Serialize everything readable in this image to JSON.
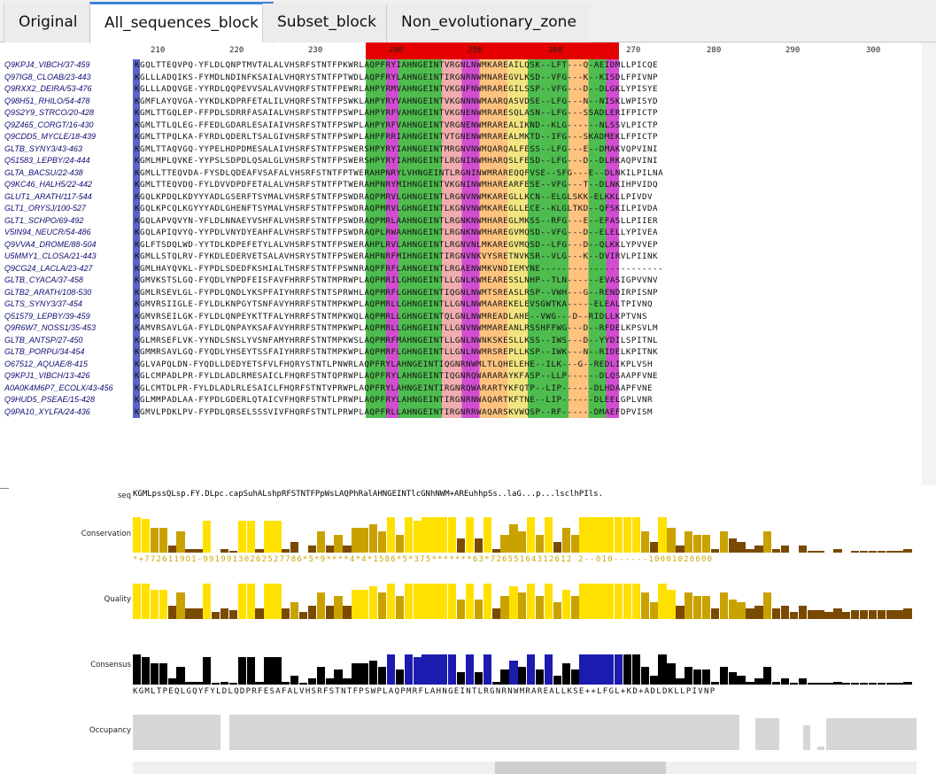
{
  "tabs": [
    {
      "label": "Original",
      "active": false
    },
    {
      "label": "All_sequences_block",
      "active": true
    },
    {
      "label": "Subset_block",
      "active": false
    },
    {
      "label": "Non_evolutionary_zone",
      "active": false
    }
  ],
  "ruler": {
    "ticks": [
      "210",
      "220",
      "230",
      "240",
      "250",
      "260",
      "270",
      "280",
      "290",
      "300"
    ]
  },
  "sequences": [
    {
      "name": "Q9KPJ4_VIBCH/37-459",
      "seq": "KGQLTTEQVPQ-YFLDLQNPTMVTALALVHSRFSTNTFPKWRLAQPFRYIAHNGEINTVRGNLNWMKAREAILQSK--LFT---Q-AEIDMLLPICQE"
    },
    {
      "name": "Q97IG8_CLOAB/23-443",
      "seq": "KGLLLADQIKS-FYMDLNDINFKSAIALVHQRYSTNTFPTWDLAQPFRYLAHNGEINTIRGNRNWMNAREGVLKSD--VFG---K--KISDLFPIVNP"
    },
    {
      "name": "Q9RXX2_DEIRA/53-476",
      "seq": "KGLLLADQVGE-YYRDLQQPEVVSALAVVHQRFSTNTFPEWRLAHPYRMVAHNGEINTVKGNFNWMRAREGILSSP--VFG---D--DLGKLYPISYE"
    },
    {
      "name": "Q98H51_RHILO/54-478",
      "seq": "KGMFLAYQVGA-YYKDLKDPRFETALILVHQRFSTNTFPSWKLAHPYRYVAHNGEINTVKGNNNWMAARQASVDSE--LFG---N--NISKLWPISYD"
    },
    {
      "name": "Q9S2Y9_STRCO/20-428",
      "seq": "KGMLTTGQLEP-FFPDLSDRRFASAIALVHSRFSTNTFPSWPLAHPYRFVAHNGEINTVKGNENWMRARESQLASN--LFG---SSADLERIFPICTP"
    },
    {
      "name": "Q9Z465_CORGT/16-430",
      "seq": "KGMLTTLQLEG-FFEDLGDARLESAIAIVHSRFSTNTFPSWPLAHPYRFVAHNGEINTVRGNENWMRAREALIKND--KLG------NLSSVLPICTP"
    },
    {
      "name": "Q9CDD5_MYCLE/18-439",
      "seq": "KGMLTTPQLKA-FYRDLQDERLTSALGIVHSRFSTNTFPSWPLAHPFRRIAHNGEINTVTGNENWMRAREALMKTD--IFG---SKADMEKLFPICTP"
    },
    {
      "name": "GLTB_SYNY3/43-463",
      "seq": "KGMLTTAQVGQ-YYPELHDPDMESALAIVHSRFSTNTFPSWERSHPYRYIAHNGEINTMRGNVNWMQARQALFESS--LFG---E--DMAKVQPVINI"
    },
    {
      "name": "Q51583_LEPBY/24-444",
      "seq": "KGMLMPLQVKE-YYPSLSDPDLQSALGLVHSRFSTNTFPSWERSHPYRYIAHNGEINTLRGNINWMHARQSLFESD--LFG---D--DLRKAQPVINI"
    },
    {
      "name": "GLTA_BACSU/22-438",
      "seq": "KGMLLTTEQVDA-FYSDLQDEAFVSAFALVHSRFSTNTFPTWERAHPNRYLVHNGEINTLRGNINWMRAREQQFVSE--SFG---E--DLNKILPILNA"
    },
    {
      "name": "Q9KC46_HALH5/22-442",
      "seq": "KGMLTTEQVDQ-FYLDVVDPDFETALALVHSRFSTNTFPTWERAHPNRYMIHNGEINTVKGNINWMHAREARFESE--VFG---T--DLNKIHPVIDQ"
    },
    {
      "name": "GLUT1_ARATH/117-544",
      "seq": "KGQLKPDQLKDYYYADLGSERFTSYMALVHSRFSTNTFPSWDRAQPMRVLGHNGEINTLRGNVNWMKAREGLLKCN--ELGLSKK-ELKKLLPIVDV"
    },
    {
      "name": "GLT1_ORYSJ/100-527",
      "seq": "KGQLKPCQLKGYYYADLGHENFTSYMALVHSRFSTNTFPSWDRAQPMRVLGHNGEINTLKGNVNWMKAREGLLECE--KLGLTKD--QFSKILPIVDA"
    },
    {
      "name": "GLT1_SCHPO/69-492",
      "seq": "KGQLAPVQVYN-YFLDLNNAEYVSHFALVHSRFSTNTFPSWDRAQPMRLAAHNGEINTLRGNKNWMHAREGLMKSS--RFG---E--EFASLLPIIER"
    },
    {
      "name": "V5IN94_NEUCR/54-486",
      "seq": "KGQLAPIQVYQ-YYPDLVNYDYEAHFALVHSRFSTNTFPSWDRAQPLRWAAHNGEINTLRGNKNWMHAREGVMQSD--VFG---D--ELELLYPIVEA"
    },
    {
      "name": "Q9VVA4_DROME/88-504",
      "seq": "KGLFTSDQLWD-YYTDLKDPEFETYLALVHSRFSTNTFPSWERAHPLRVLAHNGEINTLRGNVNLMKAREGVMQSD--LFG---D--QLKKLYPVVEP"
    },
    {
      "name": "U5MMY1_CLOSA/21-443",
      "seq": "KGMLLSTQLRV-FYKDLEDERVETSALAVHSRYSTNTFPSWERAHPNRFMIHNGEINTIRGNVNKVYSRETNVKSR--VLG---K--DVIRVLPIINK"
    },
    {
      "name": "Q9CG24_LACLA/23-427",
      "seq": "KGMLHAYQVKL-FYPDLSDEDFKSHIALTHSRFSTNTFPSWNRAQPFRFLAHNGEINTLRGAENWMKVNDIEMYNE-----------------------"
    },
    {
      "name": "GLTB_CYACA/37-458",
      "seq": "KGMVKSTSLGQ-FYQDLYNPDFEISFAVFHRRFSTNTMPRWPLAQPMRILGHNGEINTLLGNLKWMEARESSLNHP--TLN------EVASIGPVVNV"
    },
    {
      "name": "GLTB2_ARATH/108-530",
      "seq": "KGMLRSEVLGL-FYPDLQNDLYKSPFAIYHRRFSTNTSPRWHLAQPMRFLGHNGEINTIQGNLNWMTSREASLRSP--VWH---G--RENDIRPISNP"
    },
    {
      "name": "GLTS_SYNY3/37-454",
      "seq": "KGMVRSIIGLE-FYLDLKNPGYTSNFAVYHRRFSTNTMPKWPLAQPMRLLGHNGEINTLLGNLNWMAAREKELEVSGWTKA-----ELEALTPIVNQ"
    },
    {
      "name": "Q51579_LEPBY/39-459",
      "seq": "KGMVRSEILGK-FYLDLQNPEYKTTFALYHRRFSTNTMPKWQLAQPMRLLGHNGEINTQLGNLNWMREADLAHE--VWG---D--RIDLLKPTVNS"
    },
    {
      "name": "Q9R6W7_NOSS1/35-453",
      "seq": "KAMVRSAVLGA-FYLDLQNPAYKSAFAVYHRRFSTNTMPKWPLAQPMRLLGHNGEINTLLGNVNWMMAREANLRSSHFFWG---D--RFDELKPSVLM"
    },
    {
      "name": "GLTB_ANTSP/27-450",
      "seq": "KGLMRSEFLVK-YYNDLSNSLYVSNFAMYHRRFSTNTMPKWSLAQPMRFMAHNGEINTLLGNLNWNKSKESLLKSS--IWS---D--YYDILSPITNL"
    },
    {
      "name": "GLTB_PORPU/34-454",
      "seq": "KGMMRSAVLGQ-FYQDLYHSEYTSSFAIYHRRFSTNTMPKWPLAQPMRFLGHNGEINTLLGNLNWMRSREPLLKSP--IWK---N--RIDELKPITNK"
    },
    {
      "name": "O67512_AQUAE/8-415",
      "seq": "KGLVAPQLDN-FYQDLLDEDYETSFVLFHQRYSTNTLPNWRLAQPFRYLAHNGEINTIQGNRNWMLTLQHELEHE--ILK---G--REDLIKPLVSH"
    },
    {
      "name": "Q9KPJ1_VIBCH/13-426",
      "seq": "KGLCMPADLPR-FYLDLADLRMESAICLFHQRFSTNTQPRWPLAQPFRYLAHNGEINTIQGNRQWARARAYKFASP--LLP------DLQSAAPFVNE"
    },
    {
      "name": "A0A0K4M6P7_ECOLX/43-456",
      "seq": "KGLCMTDLPR-FYLDLADLRLESAICLFHQRFSTNTVPRWPLAQPFRYLAHNGEINTIRGNRQWARARTYKFQTP--LIP------DLHDAAPFVNE"
    },
    {
      "name": "Q9HUD5_PSEAE/15-428",
      "seq": "KGLMMPADLAA-FYPDLGDERLQTAICVFHQRFSTNTLPRWPLAQPFRYLAHNGEINTIRGNRNWAQARTKFTNE--LIP------DLEELGPLVNR"
    },
    {
      "name": "Q9PA10_XYLFA/24-436",
      "seq": "KGMVLPDKLPV-FYPDLQRSELSSSVIVFHQRFSTNTLPRWPLAQPFRLLAHNGEINTIRGNRRWAQARSKVWQSP--RF------DMAEFDPVISM"
    }
  ],
  "annotations": {
    "seq_label": "seq",
    "seq_line": "KGMLpssQLsp.FY.DLpc.capSuhALshpRFSTNTFPpWsLAQPhRalAHNGEINTlcGNhNWM+AREuhhpSs..laG...p...lsclhPIls.",
    "conservation_label": "Conservation",
    "conservation_numbers": "*+7726119O1-99199130262527786*5*9****4*4*1586*5*375*******63*72655164312612 2--010------10001020000",
    "quality_label": "Quality",
    "consensus_label": "Consensus",
    "consensus_seq": "KGMLTPEQLGQYFYLDLQDPRFESAFALVHSRFSTNTFPSWPLAQPMRFLAHNGEINTLRGNRNWMRAREALLKSE++LFGL+KD+ADLDKLLPIVNP",
    "occupancy_label": "Occupancy"
  },
  "colors": {
    "selection_band": "#e40000",
    "annotation_bar": "#ffe100",
    "annotation_dark": "#7a4a00",
    "tab_accent": "#3b83d4"
  }
}
